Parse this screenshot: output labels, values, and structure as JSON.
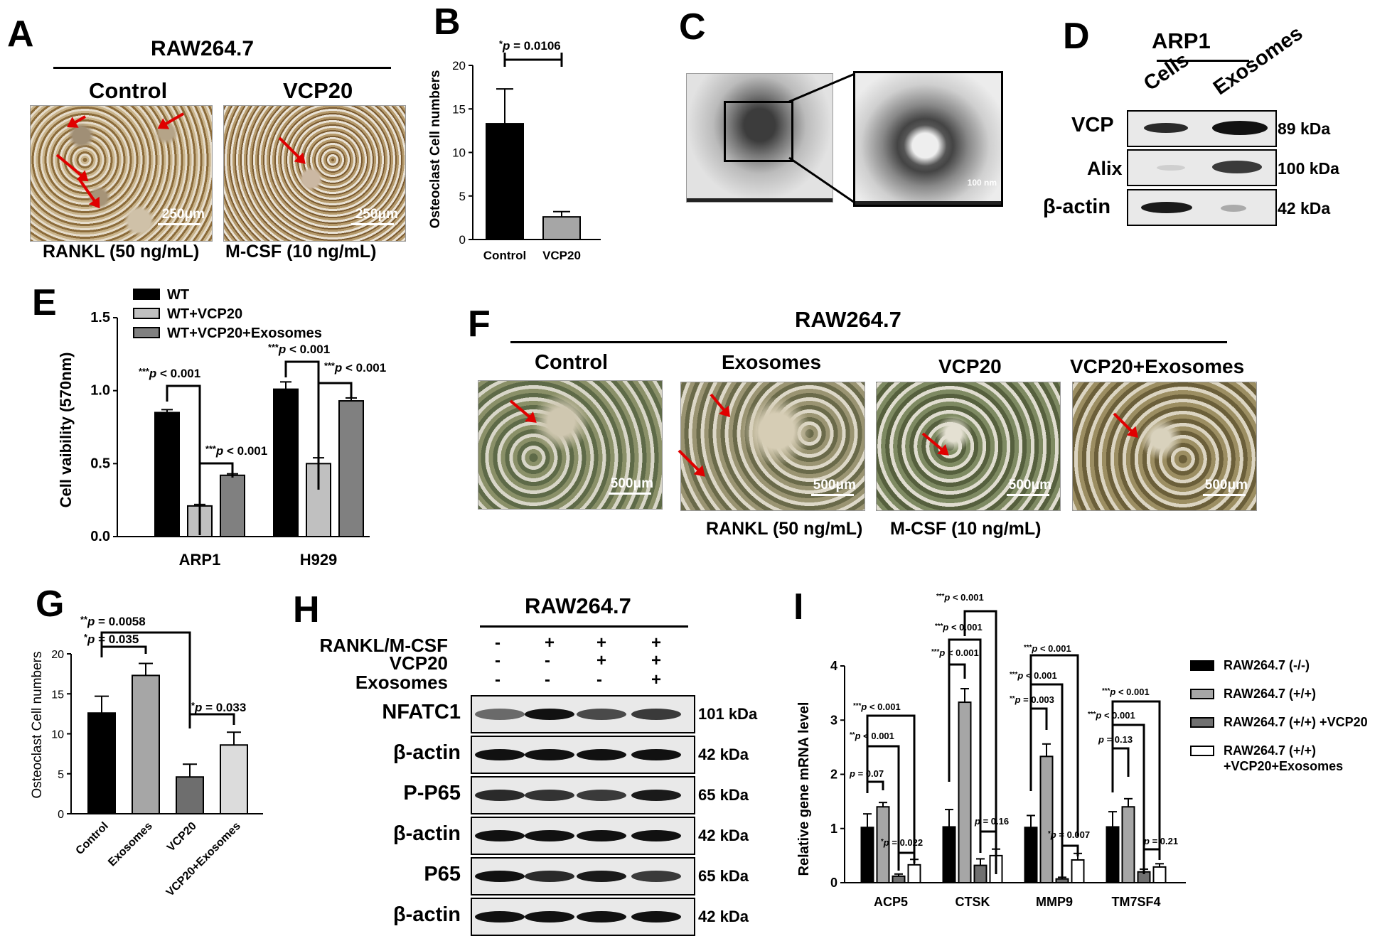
{
  "panels": {
    "A": {
      "letter": "A",
      "title": "RAW264.7",
      "labels": [
        "Control",
        "VCP20"
      ],
      "scale": [
        "250μm",
        "250μm"
      ],
      "treat1": "RANKL (50 ng/mL)",
      "treat2": "M-CSF (10 ng/mL)"
    },
    "B": {
      "letter": "B"
    },
    "C": {
      "letter": "C",
      "scale": "100 nm"
    },
    "D": {
      "letter": "D",
      "title": "ARP1",
      "cols": [
        "Cells",
        "Exosomes"
      ],
      "rows": [
        "VCP",
        "Alix",
        "β-actin"
      ],
      "kda": [
        "89 kDa",
        "100 kDa",
        "42 kDa"
      ]
    },
    "E": {
      "letter": "E"
    },
    "F": {
      "letter": "F",
      "title": "RAW264.7",
      "labels": [
        "Control",
        "Exosomes",
        "VCP20",
        "VCP20+Exosomes"
      ],
      "scale": [
        "500μm",
        "500μm",
        "500μm",
        "500μm"
      ],
      "treat1": "RANKL (50 ng/mL)",
      "treat2": "M-CSF (10 ng/mL)"
    },
    "G": {
      "letter": "G"
    },
    "H": {
      "letter": "H",
      "title": "RAW264.7",
      "conditions": [
        {
          "name": "RANKL/M-CSF",
          "marks": [
            "-",
            "+",
            "+",
            "+"
          ]
        },
        {
          "name": "VCP20",
          "marks": [
            "-",
            "-",
            "+",
            "+"
          ]
        },
        {
          "name": "Exosomes",
          "marks": [
            "-",
            "-",
            "-",
            "+"
          ]
        }
      ],
      "rows": [
        "NFATC1",
        "β-actin",
        "P-P65",
        "β-actin",
        "P65",
        "β-actin"
      ],
      "kda": [
        "101 kDa",
        "42 kDa",
        "65 kDa",
        "42 kDa",
        "65 kDa",
        "42 kDa"
      ]
    },
    "I": {
      "letter": "I"
    }
  },
  "chart_data": [
    {
      "panel": "B",
      "type": "bar",
      "categories": [
        "Control",
        "VCP20"
      ],
      "values": [
        13.3,
        2.6
      ],
      "errors": [
        4.0,
        0.6
      ],
      "colors": [
        "#000000",
        "#a6a6a6"
      ],
      "ylabel": "Osteoclast Cell numbers",
      "ylim": [
        0,
        20
      ],
      "yticks": [
        0,
        5,
        10,
        15,
        20
      ],
      "annotations": [
        {
          "star": "*",
          "p": "p",
          "text": " = 0.0106",
          "from": 0,
          "to": 1
        }
      ]
    },
    {
      "panel": "E",
      "type": "bar",
      "categories": [
        "ARP1",
        "H929"
      ],
      "series": [
        {
          "name": "WT",
          "values": [
            0.85,
            1.01
          ],
          "errors": [
            0.02,
            0.05
          ],
          "color": "#000000"
        },
        {
          "name": "WT+VCP20",
          "values": [
            0.21,
            0.5
          ],
          "errors": [
            0.01,
            0.04
          ],
          "color": "#c0c0c0"
        },
        {
          "name": "WT+VCP20+Exosomes",
          "values": [
            0.42,
            0.93
          ],
          "errors": [
            0.01,
            0.02
          ],
          "color": "#808080"
        }
      ],
      "ylabel": "Cell vaibility (570nm)",
      "ylim": [
        0,
        1.5
      ],
      "yticks": [
        "0.0",
        "0.5",
        "1.0",
        "1.5"
      ],
      "annotations": [
        {
          "star": "***",
          "p": "p",
          "text": " < 0.001"
        },
        {
          "star": "***",
          "p": "p",
          "text": " < 0.001"
        },
        {
          "star": "***",
          "p": "p",
          "text": " < 0.001"
        },
        {
          "star": "***",
          "p": "p",
          "text": " < 0.001"
        }
      ]
    },
    {
      "panel": "G",
      "type": "bar",
      "categories": [
        "Control",
        "Exosomes",
        "VCP20",
        "VCP20+Exosomes"
      ],
      "values": [
        12.6,
        17.3,
        4.6,
        8.6
      ],
      "errors": [
        2.1,
        1.5,
        1.6,
        1.6
      ],
      "colors": [
        "#000000",
        "#a6a6a6",
        "#6e6e6e",
        "#dcdcdc"
      ],
      "ylabel": "Osteoclast Cell numbers",
      "ylim": [
        0,
        20
      ],
      "yticks": [
        0,
        5,
        10,
        15,
        20
      ],
      "annotations": [
        {
          "star": "**",
          "p": "p",
          "text": " = 0.0058"
        },
        {
          "star": "*",
          "p": "p",
          "text": " = 0.035"
        },
        {
          "star": "*",
          "p": "p",
          "text": " = 0.033"
        }
      ]
    },
    {
      "panel": "I",
      "type": "bar",
      "categories": [
        "ACP5",
        "CTSK",
        "MMP9",
        "TM7SF4"
      ],
      "series": [
        {
          "name": "RAW264.7 (-/-)",
          "values": [
            1.02,
            1.03,
            1.02,
            1.03
          ],
          "errors": [
            0.25,
            0.32,
            0.22,
            0.28
          ],
          "color": "#000000"
        },
        {
          "name": "RAW264.7 (+/+)",
          "values": [
            1.4,
            3.33,
            2.33,
            1.4
          ],
          "errors": [
            0.08,
            0.25,
            0.23,
            0.15
          ],
          "color": "#a6a6a6"
        },
        {
          "name": "RAW264.7 (+/+) +VCP20",
          "values": [
            0.12,
            0.32,
            0.07,
            0.2
          ],
          "errors": [
            0.04,
            0.12,
            0.03,
            0.05
          ],
          "color": "#707070"
        },
        {
          "name": "RAW264.7 (+/+) +VCP20+Exosomes",
          "values": [
            0.33,
            0.5,
            0.42,
            0.29
          ],
          "errors": [
            0.1,
            0.12,
            0.12,
            0.06
          ],
          "color": "#ffffff"
        }
      ],
      "legend_lines": [
        [
          "RAW264.7 (-/-)"
        ],
        [
          "RAW264.7 (+/+)"
        ],
        [
          "RAW264.7 (+/+) +VCP20"
        ],
        [
          "RAW264.7 (+/+)",
          "+VCP20+Exosomes"
        ]
      ],
      "ylabel": "Relative gene mRNA level",
      "ylim": [
        0,
        4
      ],
      "yticks": [
        0,
        1,
        2,
        3,
        4
      ],
      "annotations": [
        {
          "star": "",
          "p": "p",
          "text": " = 0.07"
        },
        {
          "star": "**",
          "p": "p",
          "text": " < 0.001"
        },
        {
          "star": "***",
          "p": "p",
          "text": " < 0.001"
        },
        {
          "star": "*",
          "p": "p",
          "text": " = 0.022"
        },
        {
          "star": "***",
          "p": "p",
          "text": " < 0.001"
        },
        {
          "star": "***",
          "p": "p",
          "text": " < 0.001"
        },
        {
          "star": "***",
          "p": "p",
          "text": " < 0.001"
        },
        {
          "star": "",
          "p": "p",
          "text": " = 0.16"
        },
        {
          "star": "***",
          "p": "p",
          "text": " < 0.001"
        },
        {
          "star": "***",
          "p": "p",
          "text": " < 0.001"
        },
        {
          "star": "**",
          "p": "p",
          "text": " = 0.003"
        },
        {
          "star": "*",
          "p": "p",
          "text": " = 0.007"
        },
        {
          "star": "***",
          "p": "p",
          "text": " < 0.001"
        },
        {
          "star": "***",
          "p": "p",
          "text": " < 0.001"
        },
        {
          "star": "",
          "p": "p",
          "text": " = 0.13"
        },
        {
          "star": "",
          "p": "p",
          "text": " = 0.21"
        }
      ]
    }
  ]
}
